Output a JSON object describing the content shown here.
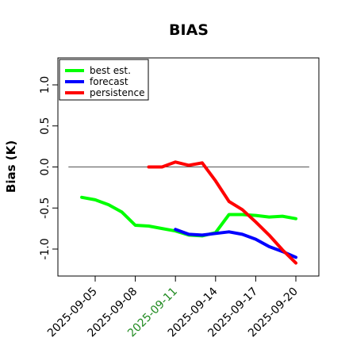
{
  "chart_data": {
    "type": "line",
    "title": "BIAS",
    "xlabel": "",
    "ylabel": "Bias (K)",
    "x_ticks": [
      "2025-09-05",
      "2025-09-08",
      "2025-09-11",
      "2025-09-14",
      "2025-09-17",
      "2025-09-20"
    ],
    "highlighted_tick": "2025-09-11",
    "highlight_color": "#228b22",
    "ylim": [
      -1.3,
      1.3
    ],
    "y_ticks": [
      "-1.0",
      "-0.5",
      "0.0",
      "0.5",
      "1.0"
    ],
    "zero_line": true,
    "legend_position": "top-left",
    "series": [
      {
        "name": "best est.",
        "color": "#00ff00",
        "points": [
          [
            "2025-09-04",
            -0.37
          ],
          [
            "2025-09-05",
            -0.4
          ],
          [
            "2025-09-06",
            -0.46
          ],
          [
            "2025-09-07",
            -0.55
          ],
          [
            "2025-09-08",
            -0.71
          ],
          [
            "2025-09-09",
            -0.72
          ],
          [
            "2025-09-10",
            -0.75
          ],
          [
            "2025-09-11",
            -0.78
          ],
          [
            "2025-09-12",
            -0.83
          ],
          [
            "2025-09-13",
            -0.84
          ],
          [
            "2025-09-14",
            -0.8
          ],
          [
            "2025-09-15",
            -0.58
          ],
          [
            "2025-09-16",
            -0.58
          ],
          [
            "2025-09-17",
            -0.59
          ],
          [
            "2025-09-18",
            -0.61
          ],
          [
            "2025-09-19",
            -0.6
          ],
          [
            "2025-09-20",
            -0.63
          ]
        ]
      },
      {
        "name": "forecast",
        "color": "#0000ff",
        "points": [
          [
            "2025-09-11",
            -0.76
          ],
          [
            "2025-09-12",
            -0.82
          ],
          [
            "2025-09-13",
            -0.83
          ],
          [
            "2025-09-14",
            -0.81
          ],
          [
            "2025-09-15",
            -0.79
          ],
          [
            "2025-09-16",
            -0.82
          ],
          [
            "2025-09-17",
            -0.88
          ],
          [
            "2025-09-18",
            -0.97
          ],
          [
            "2025-09-19",
            -1.03
          ],
          [
            "2025-09-20",
            -1.1
          ]
        ]
      },
      {
        "name": "persistence",
        "color": "#ff0000",
        "points": [
          [
            "2025-09-09",
            0.0
          ],
          [
            "2025-09-10",
            0.0
          ],
          [
            "2025-09-11",
            0.06
          ],
          [
            "2025-09-12",
            0.02
          ],
          [
            "2025-09-13",
            0.05
          ],
          [
            "2025-09-14",
            -0.17
          ],
          [
            "2025-09-15",
            -0.42
          ],
          [
            "2025-09-16",
            -0.52
          ],
          [
            "2025-09-17",
            -0.67
          ],
          [
            "2025-09-18",
            -0.83
          ],
          [
            "2025-09-19",
            -1.01
          ],
          [
            "2025-09-20",
            -1.17
          ]
        ]
      }
    ]
  }
}
